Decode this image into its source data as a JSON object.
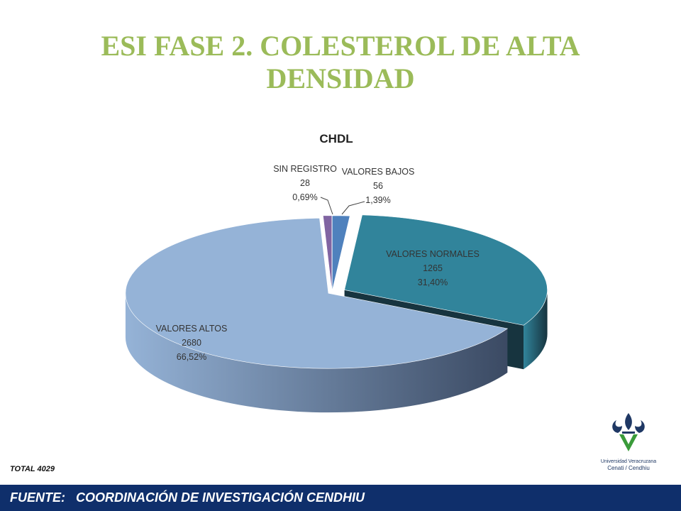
{
  "slide": {
    "title": "ESI FASE 2.  COLESTEROL DE ALTA DENSIDAD",
    "total": "TOTAL 4029",
    "footer": "FUENTE:   COORDINACIÓN DE INVESTIGACIÓN CENDHIU",
    "logo": {
      "icon": "fleur-de-lis-v-logo",
      "line1": "Universidad Veracruzana",
      "line2": "Cenati / Cendhiu"
    }
  },
  "chart_data": {
    "type": "pie",
    "style": "3d-exploded",
    "title": "CHDL",
    "categories": [
      "VALORES BAJOS",
      "VALORES NORMALES",
      "VALORES ALTOS",
      "SIN REGISTRO"
    ],
    "values": [
      56,
      1265,
      2680,
      28
    ],
    "percent_labels": [
      "1,39%",
      "31,40%",
      "66,52%",
      "0,69%"
    ],
    "colors": [
      "#4f81bd",
      "#31849b",
      "#95b3d7",
      "#8064a2"
    ],
    "side_colors": [
      "#2c4d75",
      "#17343f",
      "#3b4a63",
      "#4a3a60"
    ],
    "exploded": [
      "VALORES NORMALES"
    ]
  }
}
